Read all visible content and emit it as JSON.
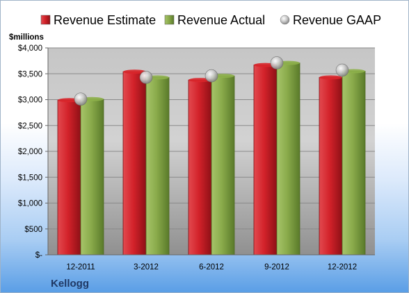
{
  "chart_data": {
    "type": "bar",
    "company": "Kellogg",
    "ylabel": "$millions",
    "categories": [
      "12-2011",
      "3-2012",
      "6-2012",
      "9-2012",
      "12-2012"
    ],
    "series": [
      {
        "name": "Revenue Estimate",
        "kind": "bar",
        "color": "#d9262b",
        "values": [
          2990,
          3540,
          3380,
          3670,
          3430
        ]
      },
      {
        "name": "Revenue Actual",
        "kind": "bar",
        "color": "#8db04a",
        "values": [
          3010,
          3430,
          3460,
          3710,
          3550
        ]
      },
      {
        "name": "Revenue GAAP",
        "kind": "marker",
        "color": "#c0c0c0",
        "values": [
          3010,
          3430,
          3460,
          3710,
          3570
        ]
      }
    ],
    "ylim": [
      0,
      4000
    ],
    "yticks": [
      0,
      500,
      1000,
      1500,
      2000,
      2500,
      3000,
      3500,
      4000
    ],
    "ytick_labels": [
      "$-",
      "$500",
      "$1,000",
      "$1,500",
      "$2,000",
      "$2,500",
      "$3,000",
      "$3,500",
      "$4,000"
    ],
    "legend_position": "top",
    "grid": true
  }
}
